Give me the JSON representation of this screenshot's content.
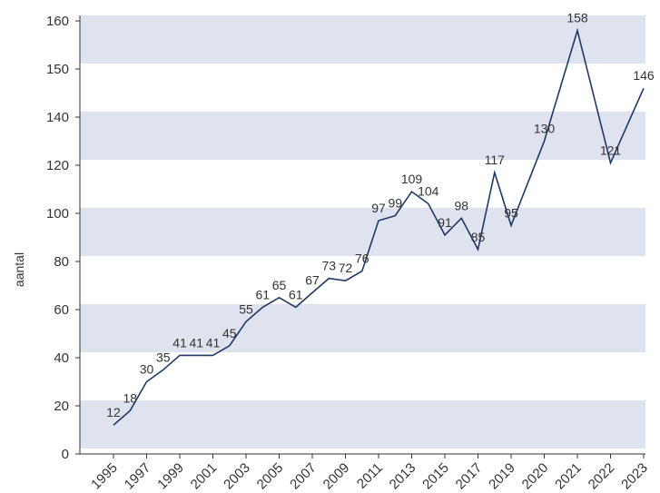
{
  "chart_data": {
    "type": "line",
    "y_label": "aantal",
    "x": [
      1995,
      1996,
      1997,
      1998,
      1999,
      2000,
      2001,
      2002,
      2003,
      2004,
      2005,
      2006,
      2007,
      2008,
      2009,
      2010,
      2011,
      2012,
      2013,
      2014,
      2015,
      2016,
      2017,
      2018,
      2019,
      2020,
      2021,
      2022,
      2023
    ],
    "series": [
      {
        "name": "aantal",
        "color": "#1f3864",
        "values": [
          12,
          18,
          30,
          35,
          41,
          41,
          41,
          45,
          55,
          61,
          65,
          61,
          67,
          73,
          72,
          76,
          97,
          99,
          109,
          104,
          91,
          98,
          85,
          117,
          95,
          130,
          158,
          121,
          146
        ]
      }
    ],
    "xlim": [
      1994,
      2023
    ],
    "xticks": [
      1995,
      1997,
      1999,
      2001,
      2003,
      2005,
      2007,
      2009,
      2011,
      2013,
      2015,
      2017,
      2019,
      2020,
      2021,
      2022,
      2023
    ],
    "ylim": [
      0,
      160
    ],
    "yticks": [
      0,
      20,
      40,
      60,
      80,
      100,
      120,
      140,
      150,
      160
    ],
    "band_color": "#dfe3ef",
    "grid": true
  }
}
